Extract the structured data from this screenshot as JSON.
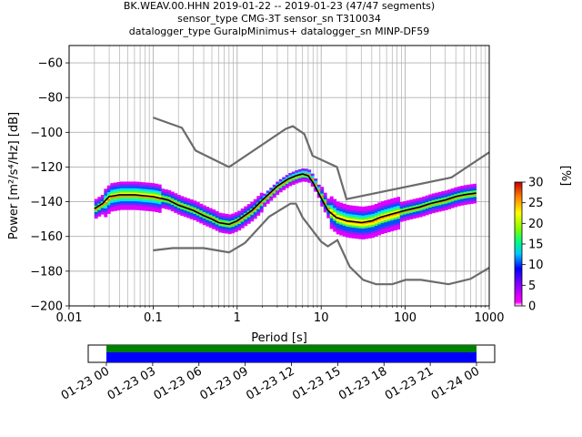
{
  "title_lines": [
    "BK.WEAV.00.HHN   2019-01-22 -- 2019-01-23  (47/47 segments)",
    "sensor_type CMG-3T sensor_sn T310034",
    "datalogger_type GuralpMinimus+ datalogger_sn MINP-DF59"
  ],
  "chart_data": {
    "type": "heatmap",
    "xlabel": "Period [s]",
    "ylabel": "Power [m²/s⁴/Hz] [dB]",
    "x_scale": "log",
    "xlim": [
      0.01,
      1000
    ],
    "ylim": [
      -200,
      -50
    ],
    "x_tick_labels": [
      "0.01",
      "0.1",
      "1",
      "10",
      "100",
      "1000"
    ],
    "x_ticks": [
      0.01,
      0.1,
      1,
      10,
      100,
      1000
    ],
    "y_ticks": [
      -200,
      -180,
      -160,
      -140,
      -120,
      -100,
      -80,
      -60
    ],
    "y_tick_labels": [
      "−200",
      "−180",
      "−160",
      "−140",
      "−120",
      "−100",
      "−80",
      "−60"
    ],
    "grid": true,
    "mean_curve": [
      [
        0.02,
        -144
      ],
      [
        0.025,
        -141
      ],
      [
        0.03,
        -137
      ],
      [
        0.04,
        -136
      ],
      [
        0.06,
        -136
      ],
      [
        0.1,
        -137
      ],
      [
        0.15,
        -139
      ],
      [
        0.2,
        -142
      ],
      [
        0.3,
        -145
      ],
      [
        0.4,
        -148
      ],
      [
        0.5,
        -150
      ],
      [
        0.6,
        -152
      ],
      [
        0.8,
        -153
      ],
      [
        1,
        -151
      ],
      [
        1.5,
        -145
      ],
      [
        2,
        -139
      ],
      [
        3,
        -131
      ],
      [
        4,
        -127
      ],
      [
        5,
        -125
      ],
      [
        6,
        -124
      ],
      [
        7,
        -125
      ],
      [
        8,
        -129
      ],
      [
        10,
        -138
      ],
      [
        12,
        -145
      ],
      [
        15,
        -149
      ],
      [
        20,
        -151
      ],
      [
        30,
        -152
      ],
      [
        40,
        -151
      ],
      [
        50,
        -149
      ],
      [
        70,
        -147
      ],
      [
        100,
        -145
      ],
      [
        150,
        -143
      ],
      [
        200,
        -141
      ],
      [
        300,
        -139
      ],
      [
        400,
        -137
      ],
      [
        500,
        -136
      ],
      [
        700,
        -135
      ]
    ],
    "nhnm": [
      [
        0.1,
        -91.5
      ],
      [
        0.22,
        -97.4
      ],
      [
        0.32,
        -110.5
      ],
      [
        0.8,
        -120
      ],
      [
        3.8,
        -98
      ],
      [
        4.6,
        -96.5
      ],
      [
        6.3,
        -101
      ],
      [
        7.9,
        -113.5
      ],
      [
        15.4,
        -120
      ],
      [
        20,
        -138.5
      ],
      [
        354.8,
        -126
      ],
      [
        1000,
        -111.5
      ]
    ],
    "nlnm": [
      [
        0.1,
        -168
      ],
      [
        0.17,
        -166.7
      ],
      [
        0.4,
        -166.7
      ],
      [
        0.8,
        -169.2
      ],
      [
        1.24,
        -163.7
      ],
      [
        2.4,
        -148.6
      ],
      [
        4.3,
        -141.1
      ],
      [
        5,
        -141.1
      ],
      [
        6,
        -149
      ],
      [
        10,
        -163
      ],
      [
        12,
        -165.7
      ],
      [
        15.6,
        -162.1
      ],
      [
        21.9,
        -177.5
      ],
      [
        31.6,
        -185
      ],
      [
        45,
        -187.5
      ],
      [
        70,
        -187.5
      ],
      [
        101,
        -185
      ],
      [
        154,
        -185
      ],
      [
        328,
        -187.5
      ],
      [
        600,
        -184.4
      ],
      [
        1000,
        -178
      ]
    ],
    "colorbar": {
      "label": "[%]",
      "range": [
        0,
        30
      ],
      "ticks": [
        0,
        5,
        10,
        15,
        20,
        25,
        30
      ]
    },
    "time_coverage": {
      "tick_labels": [
        "01-23 00",
        "01-23 03",
        "01-23 06",
        "01-23 09",
        "01-23 12",
        "01-23 15",
        "01-23 18",
        "01-23 21",
        "01-24 00"
      ],
      "coverage_fraction": 1.0
    }
  },
  "colors": {
    "model_curve": "#6b6b6b",
    "mean_curve": "#000000",
    "coverage_green": "#008000",
    "coverage_blue": "#0000ff"
  }
}
